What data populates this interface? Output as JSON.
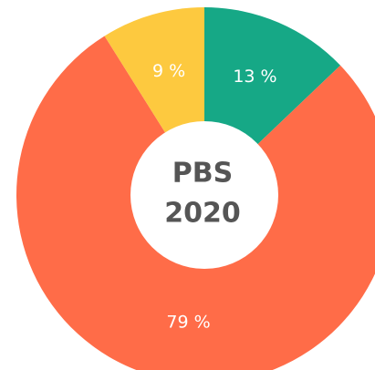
{
  "chart_data": {
    "type": "donut",
    "title_lines": [
      "PBS",
      "2020"
    ],
    "categories": [
      null,
      null,
      null
    ],
    "values": [
      13,
      79,
      9
    ],
    "value_labels": [
      "13 %",
      "79 %",
      "9 %"
    ],
    "colors": [
      "#16a886",
      "#ff6c48",
      "#fdc93f"
    ]
  }
}
